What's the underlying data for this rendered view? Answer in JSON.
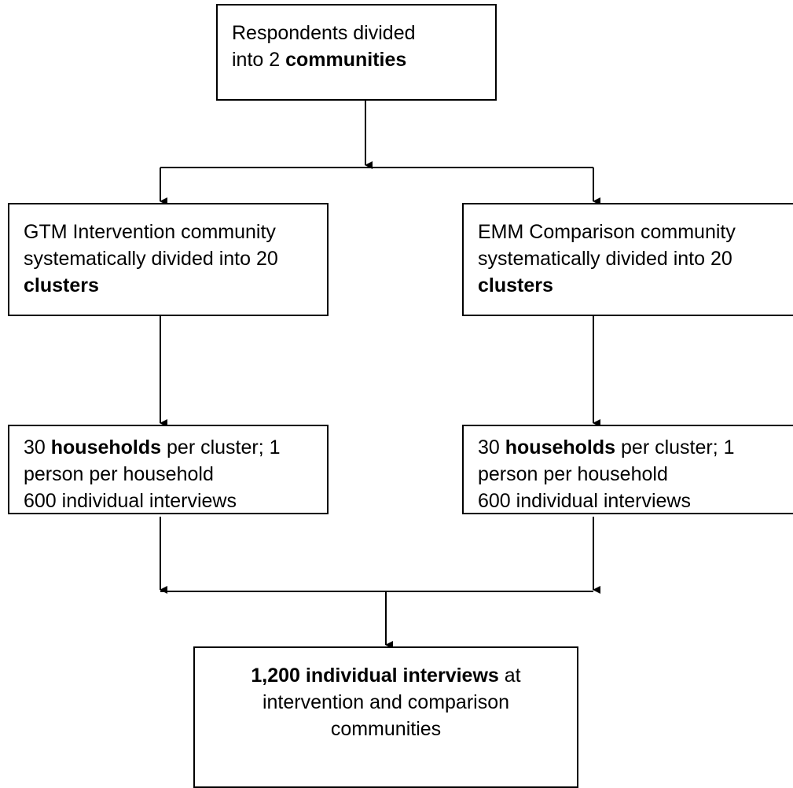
{
  "nodes": {
    "top": {
      "line1": "Respondents divided",
      "line2_prefix": "into 2 ",
      "line2_bold": "communities"
    },
    "left_cluster": {
      "line1": "GTM Intervention community",
      "line2": "systematically divided into 20",
      "line3_bold": "clusters"
    },
    "right_cluster": {
      "line1": "EMM Comparison community",
      "line2": "systematically divided into 20",
      "line3_bold": "clusters"
    },
    "left_households": {
      "line1_prefix": "30 ",
      "line1_bold": "households",
      "line1_suffix": " per cluster; 1",
      "line2": "person per household",
      "line3": "600 individual interviews"
    },
    "right_households": {
      "line1_prefix": "30 ",
      "line1_bold": "households",
      "line1_suffix": " per cluster; 1",
      "line2": "person per household",
      "line3": "600 individual interviews"
    },
    "bottom": {
      "line1_bold": "1,200 individual interviews",
      "line1_suffix": " at",
      "line2": "intervention and comparison",
      "line3": "communities"
    }
  },
  "colors": {
    "stroke": "#000000",
    "background": "#ffffff"
  }
}
